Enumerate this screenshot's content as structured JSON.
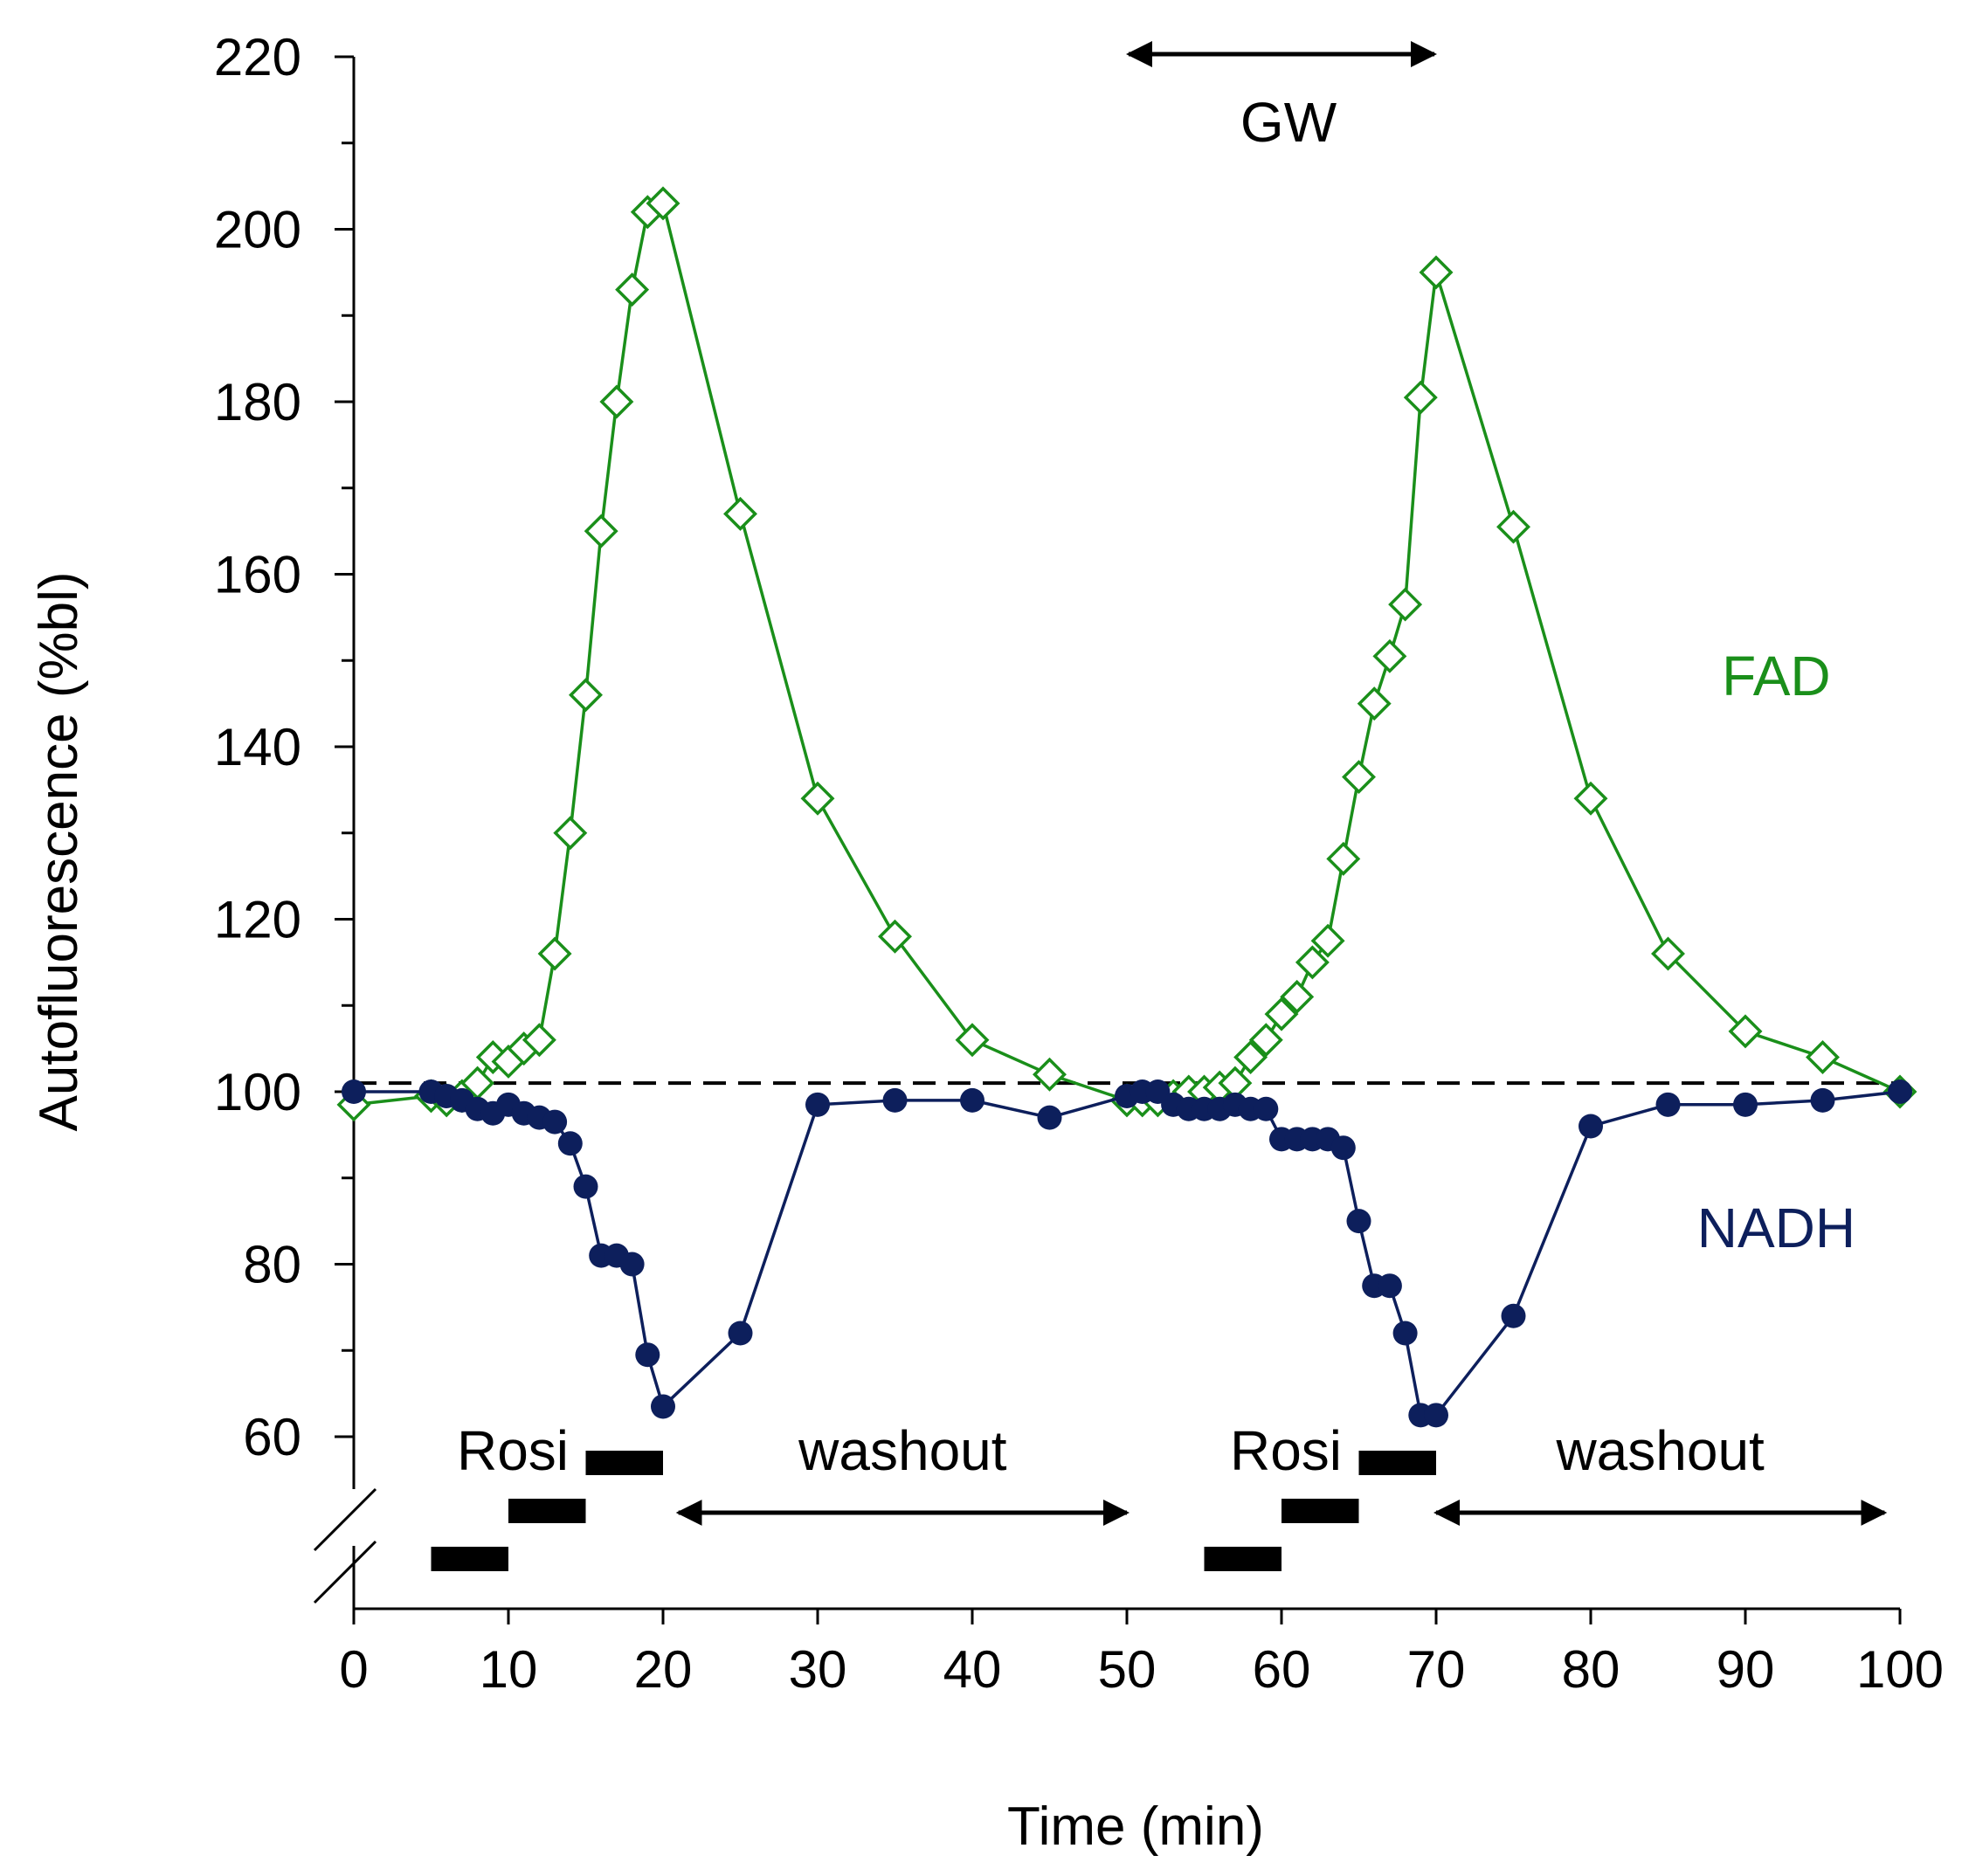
{
  "chart_data": {
    "type": "line",
    "title": "",
    "xlabel": "Time (min)",
    "ylabel": "Autofluorescence  (%bl)",
    "xlim": [
      0,
      100
    ],
    "ylim": [
      60,
      220
    ],
    "axis_break": "y below 60",
    "xticks": [
      0,
      10,
      20,
      30,
      40,
      50,
      60,
      70,
      80,
      90,
      100
    ],
    "yticks": [
      60,
      80,
      100,
      120,
      140,
      160,
      180,
      200,
      220
    ],
    "y_minor_step": 10,
    "grid": false,
    "baseline": 101,
    "series": [
      {
        "name": "FAD",
        "color": "#1a8f1a",
        "marker": "open-diamond",
        "x": [
          0,
          5,
          6,
          7,
          8,
          9,
          10,
          11,
          12,
          13,
          14,
          15,
          16,
          17,
          18,
          19,
          20,
          25,
          30,
          35,
          40,
          45,
          50,
          51,
          52,
          53,
          54,
          55,
          56,
          57,
          58,
          59,
          60,
          61,
          62,
          63,
          64,
          65,
          66,
          67,
          68,
          69,
          70,
          75,
          80,
          85,
          90,
          95,
          100
        ],
        "y": [
          98.5,
          99.5,
          99,
          99.5,
          101,
          104,
          103.5,
          105,
          106,
          116,
          130,
          146,
          165,
          180,
          193,
          202,
          203,
          167,
          134,
          118,
          106,
          102,
          99,
          99,
          99,
          99.5,
          100,
          100,
          100.5,
          101,
          104,
          106,
          109,
          111,
          115,
          117.5,
          127,
          136.5,
          145,
          150.5,
          156.5,
          180.5,
          195,
          165.5,
          134,
          116,
          107,
          104,
          100
        ]
      },
      {
        "name": "NADH",
        "color": "#0d1f5c",
        "marker": "filled-circle",
        "x": [
          0,
          5,
          6,
          7,
          8,
          9,
          10,
          11,
          12,
          13,
          14,
          15,
          16,
          17,
          18,
          19,
          20,
          25,
          30,
          35,
          40,
          45,
          50,
          51,
          52,
          53,
          54,
          55,
          56,
          57,
          58,
          59,
          60,
          61,
          62,
          63,
          64,
          65,
          66,
          67,
          68,
          69,
          70,
          75,
          80,
          85,
          90,
          95,
          100
        ],
        "y": [
          100,
          100,
          99.5,
          99,
          98,
          97.5,
          98.5,
          97.5,
          97,
          96.5,
          94,
          89,
          81,
          81,
          80,
          69.5,
          63.5,
          72,
          98.5,
          99,
          99,
          97,
          99.5,
          100,
          100,
          98.5,
          98,
          98,
          98,
          98.5,
          98,
          98,
          94.5,
          94.5,
          94.5,
          94.5,
          93.5,
          85,
          77.5,
          77.5,
          72,
          62.5,
          62.5,
          74,
          96,
          98.5,
          98.5,
          99,
          100
        ]
      }
    ],
    "series_labels": [
      {
        "text": "FAD",
        "x": 92,
        "y": 146
      },
      {
        "text": "NADH",
        "x": 92,
        "y": 82
      }
    ],
    "annotations": [
      {
        "text": "GW",
        "arrow_x": [
          50,
          70
        ],
        "y": 218
      },
      {
        "text": "Rosi",
        "x": 10,
        "y": 58
      },
      {
        "text": "washout",
        "arrow_x": [
          21,
          50
        ],
        "x": 35.5,
        "y": 58
      },
      {
        "text": "Rosi",
        "x": 60,
        "y": 58
      },
      {
        "text": "washout",
        "arrow_x": [
          70,
          99
        ],
        "x": 84.5,
        "y": 58
      }
    ],
    "dose_bars": [
      {
        "x": [
          5,
          10
        ],
        "level": 1
      },
      {
        "x": [
          10,
          15
        ],
        "level": 2
      },
      {
        "x": [
          15,
          20
        ],
        "level": 3
      },
      {
        "x": [
          55,
          60
        ],
        "level": 1
      },
      {
        "x": [
          60,
          65
        ],
        "level": 2
      },
      {
        "x": [
          65,
          70
        ],
        "level": 3
      }
    ]
  }
}
